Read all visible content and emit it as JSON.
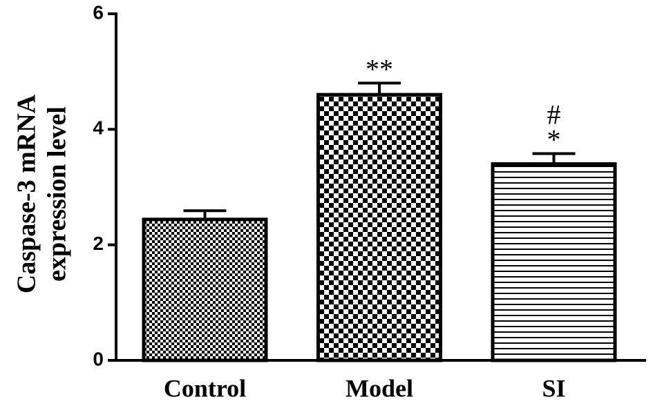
{
  "chart_data": {
    "type": "bar",
    "ylabel": [
      "Caspase-3 mRNA",
      "expression level"
    ],
    "categories": [
      "Control",
      "Model",
      "SI"
    ],
    "values": [
      2.44,
      4.6,
      3.4
    ],
    "errors": [
      0.15,
      0.2,
      0.18
    ],
    "patterns": [
      "fine-checker",
      "checker",
      "hlines"
    ],
    "annotations": [
      {
        "category": "Model",
        "text": "**"
      },
      {
        "category": "SI",
        "text": "*"
      },
      {
        "category": "SI",
        "text": "#"
      }
    ],
    "ylim": [
      0,
      6
    ],
    "yticks": [
      0,
      2,
      4,
      6
    ],
    "grid": false
  }
}
